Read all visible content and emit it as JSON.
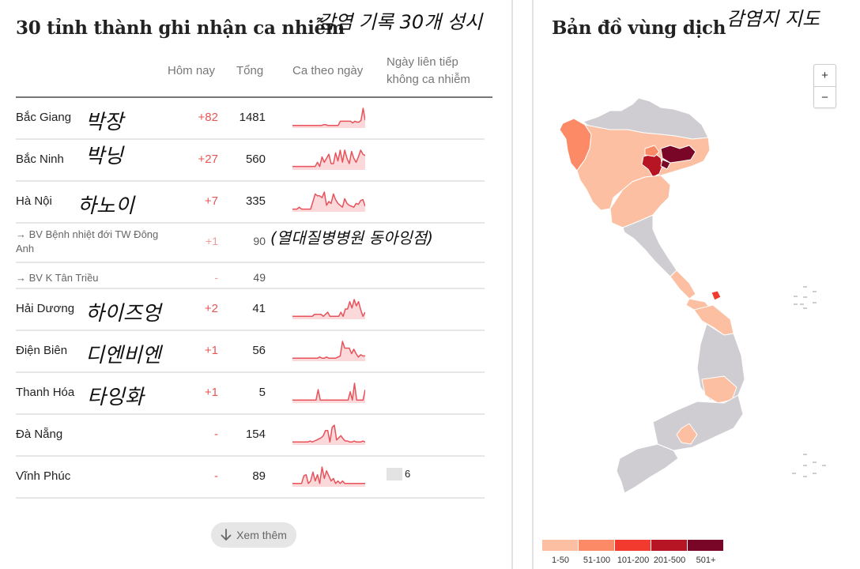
{
  "left": {
    "title": "30 tỉnh thành ghi nhận ca nhiễm",
    "annotation": "감염 기록 30개 성시",
    "columns": {
      "today": "Hôm nay",
      "total": "Tổng",
      "daily": "Ca theo ngày",
      "no_infect_line1": "Ngày liên tiếp",
      "no_infect_line2": "không ca nhiễm"
    },
    "rows": [
      {
        "name": "Bắc Giang",
        "annotation": "박장",
        "today": "+82",
        "total": "1481",
        "no_infect": "",
        "spark": [
          2,
          2,
          2,
          2,
          2,
          2,
          2,
          2,
          2,
          2,
          2,
          2,
          2,
          2,
          2,
          3,
          3,
          2,
          2,
          2,
          2,
          2,
          2,
          7,
          7,
          7,
          7,
          7,
          7,
          5,
          7,
          6,
          6,
          8,
          22,
          8
        ]
      },
      {
        "name": "Bắc Ninh",
        "annotation": "박닝",
        "today": "+27",
        "total": "560",
        "no_infect": "",
        "spark": [
          2,
          2,
          2,
          2,
          2,
          2,
          2,
          2,
          2,
          2,
          2,
          5,
          2,
          9,
          5,
          8,
          11,
          4,
          4,
          12,
          6,
          14,
          5,
          14,
          8,
          4,
          13,
          8,
          5,
          9,
          14,
          11,
          10
        ]
      },
      {
        "name": "Hà Nội",
        "annotation": "하노이",
        "today": "+7",
        "total": "335",
        "no_infect": "",
        "spark": [
          2,
          2,
          2,
          4,
          2,
          2,
          2,
          2,
          2,
          10,
          18,
          16,
          16,
          14,
          20,
          6,
          10,
          8,
          18,
          12,
          8,
          6,
          4,
          13,
          8,
          6,
          5,
          4,
          8,
          7,
          11,
          12,
          5
        ]
      },
      {
        "name": "→ BV Bệnh nhiệt đới TW Đông Anh",
        "annotation": "(열대질병병원 동아잉점)",
        "today": "+1",
        "total": "90",
        "sub": true
      },
      {
        "name": "→ BV K Tân Triều",
        "today": "-",
        "total": "49",
        "sub": true
      },
      {
        "name": "Hải Dương",
        "annotation": "하이즈엉",
        "today": "+2",
        "total": "41",
        "no_infect": "",
        "spark": [
          2,
          2,
          2,
          2,
          2,
          2,
          2,
          2,
          2,
          2,
          4,
          4,
          4,
          4,
          2,
          4,
          6,
          2,
          2,
          2,
          2,
          2,
          6,
          2,
          9,
          9,
          16,
          10,
          18,
          12,
          16,
          8,
          2,
          6
        ]
      },
      {
        "name": "Điện Biên",
        "annotation": "디엔비엔",
        "today": "+1",
        "total": "56",
        "no_infect": "",
        "spark": [
          2,
          2,
          2,
          2,
          2,
          2,
          2,
          2,
          2,
          2,
          2,
          2,
          3,
          2,
          2,
          3,
          2,
          2,
          2,
          2,
          3,
          4,
          17,
          11,
          11,
          11,
          6,
          10,
          6,
          3,
          5,
          4,
          4
        ]
      },
      {
        "name": "Thanh Hóa",
        "annotation": "타잉화",
        "today": "+1",
        "total": "5",
        "no_infect": "",
        "spark": [
          2,
          2,
          2,
          2,
          2,
          2,
          2,
          2,
          2,
          2,
          2,
          2,
          12,
          2,
          2,
          2,
          2,
          2,
          2,
          2,
          2,
          2,
          2,
          2,
          2,
          2,
          2,
          10,
          2,
          18,
          2,
          2,
          2,
          2,
          12
        ]
      },
      {
        "name": "Đà Nẵng",
        "today": "-",
        "total": "154",
        "no_infect": "",
        "spark": [
          2,
          2,
          2,
          2,
          2,
          2,
          2,
          2,
          3,
          2,
          3,
          4,
          5,
          6,
          8,
          13,
          13,
          2,
          16,
          18,
          4,
          6,
          8,
          5,
          3,
          3,
          2,
          2,
          3,
          2,
          2,
          2,
          3,
          2
        ]
      },
      {
        "name": "Vĩnh Phúc",
        "today": "-",
        "total": "89",
        "no_infect": "6",
        "spark": [
          2,
          2,
          2,
          2,
          2,
          8,
          9,
          2,
          4,
          11,
          4,
          9,
          2,
          15,
          6,
          12,
          8,
          4,
          6,
          2,
          4,
          2,
          4,
          2,
          2,
          2,
          2,
          2,
          2,
          2,
          2,
          2,
          2
        ]
      }
    ],
    "more_button": "Xem thêm"
  },
  "right": {
    "title": "Bản đồ vùng dịch",
    "annotation": "감염지 지도",
    "zoom_in": "+",
    "zoom_out": "−",
    "legend": [
      {
        "label": "1-50",
        "color": "#fcbfa2"
      },
      {
        "label": "51-100",
        "color": "#fc8a66"
      },
      {
        "label": "101-200",
        "color": "#f23b2e"
      },
      {
        "label": "201-500",
        "color": "#b81524"
      },
      {
        "label": "501+",
        "color": "#7a0627"
      }
    ],
    "no_data_color": "#cfcdd1"
  },
  "colors": {
    "spark_line": "#e8525a",
    "spark_fill": "#fbd9da",
    "today_text": "#e85555"
  }
}
